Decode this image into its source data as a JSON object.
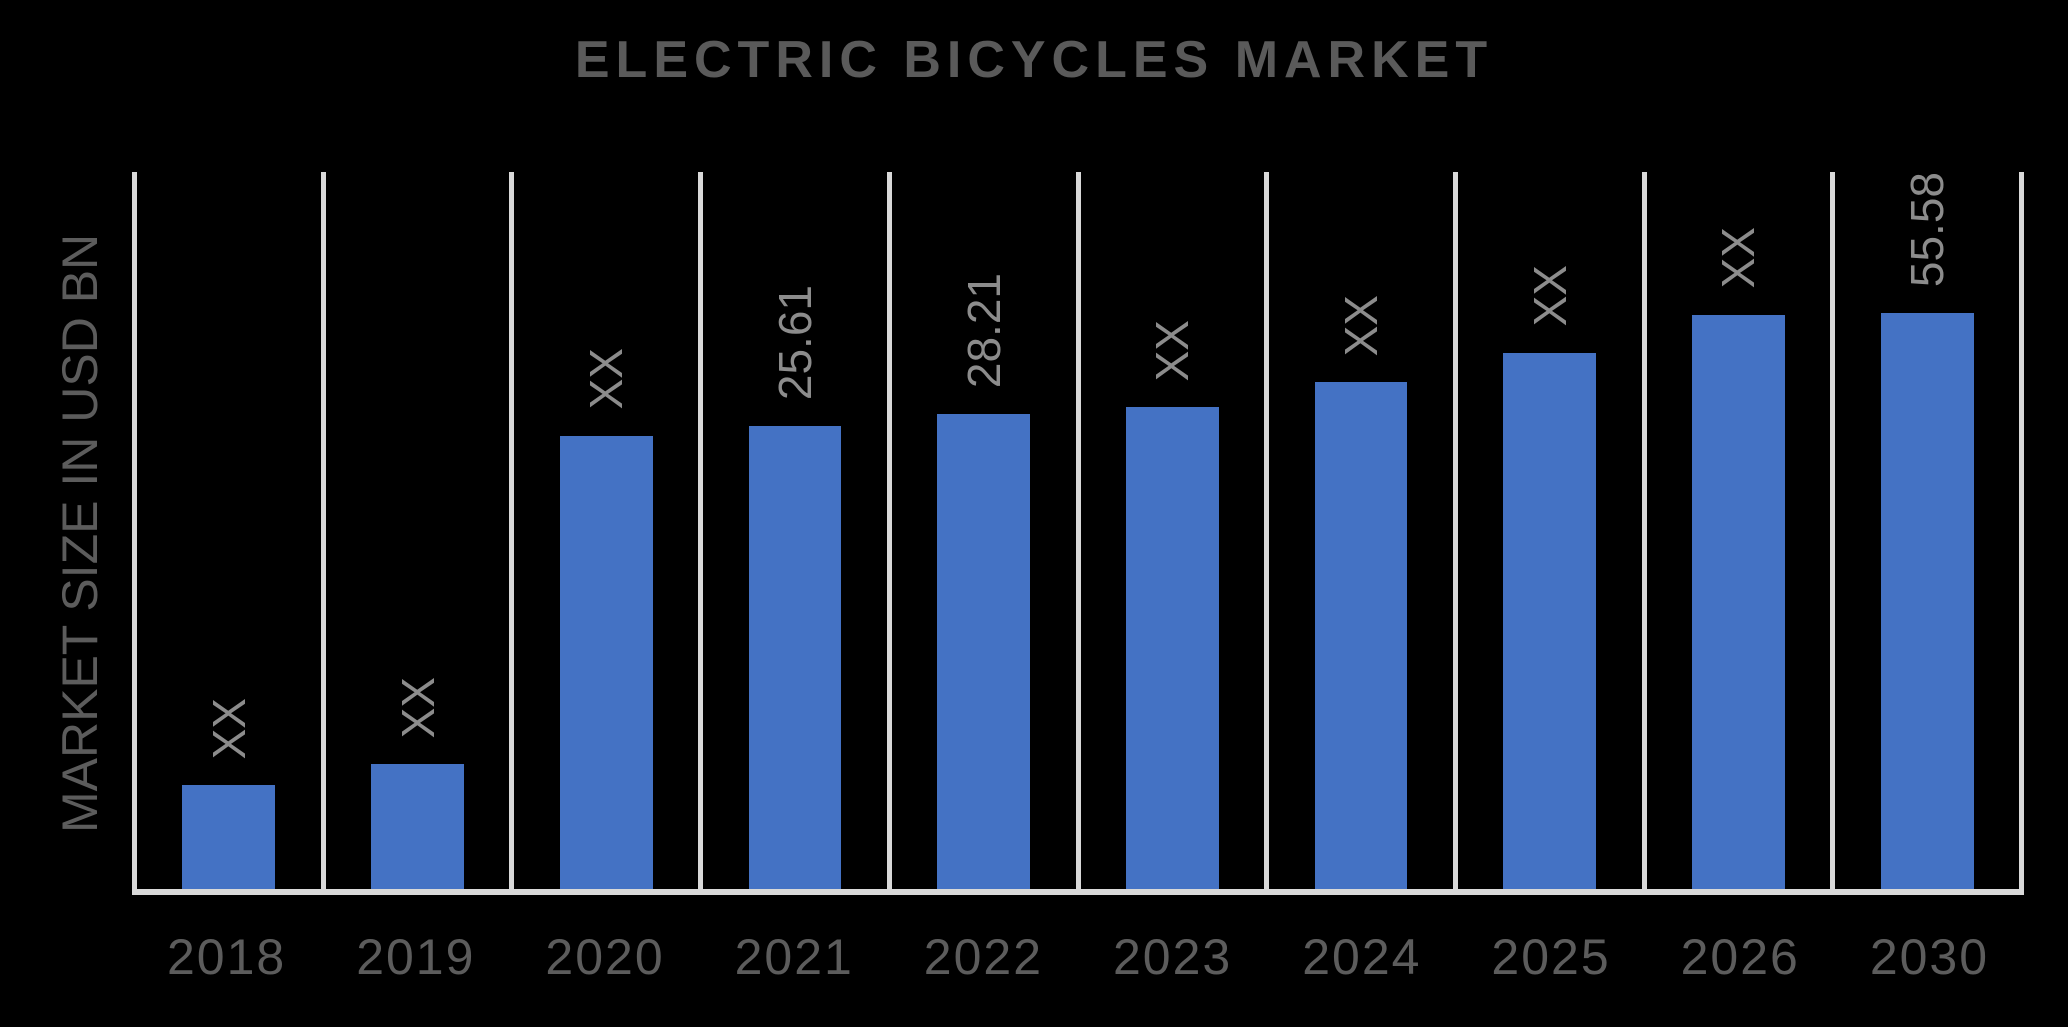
{
  "chart": {
    "title": "ELECTRIC BICYCLES MARKET",
    "y_axis_label": "MARKET SIZE IN USD BN",
    "colors": {
      "background": "#000000",
      "bar": "#4472C4",
      "gridline": "#D9D9D9",
      "title_text": "#5A5A5A",
      "axis_text": "#5C5C5C",
      "value_label_text": "#8C8C8C"
    }
  },
  "chart_data": {
    "type": "bar",
    "title": "ELECTRIC BICYCLES MARKET",
    "xlabel": "",
    "ylabel": "MARKET SIZE IN USD BN",
    "categories": [
      "2018",
      "2019",
      "2020",
      "2021",
      "2022",
      "2023",
      "2024",
      "2025",
      "2026",
      "2030"
    ],
    "values": [
      null,
      null,
      null,
      25.61,
      28.21,
      null,
      null,
      null,
      null,
      55.58
    ],
    "value_labels": [
      "XX",
      "XX",
      "XX",
      "25.61",
      "28.21",
      "XX",
      "XX",
      "XX",
      "XX",
      "55.58"
    ],
    "drawn_height_pct": [
      14.5,
      17.4,
      63.2,
      64.6,
      66.3,
      67.2,
      70.7,
      74.8,
      80.1,
      85.2
    ],
    "value_label_rotation_deg": 90,
    "legend": "none",
    "grid": "vertical-gridlines-only",
    "background": "black",
    "bar_color": "#4472C4",
    "note": "Bars for years labeled XX have masked values in the source; bar heights listed as percent of plot height as drawn."
  }
}
